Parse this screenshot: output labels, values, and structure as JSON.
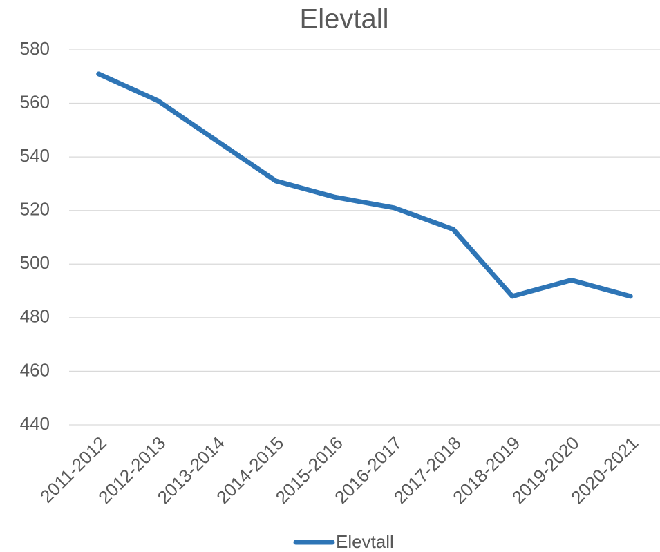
{
  "chart_data": {
    "type": "line",
    "title": "Elevtall",
    "categories": [
      "2011-2012",
      "2012-2013",
      "2013-2014",
      "2014-2015",
      "2015-2016",
      "2016-2017",
      "2017-2018",
      "2018-2019",
      "2019-2020",
      "2020-2021"
    ],
    "series": [
      {
        "name": "Elevtall",
        "color": "#2e75b6",
        "values": [
          571,
          561,
          546,
          531,
          525,
          521,
          513,
          488,
          494,
          488
        ]
      }
    ],
    "ylim": [
      440,
      580
    ],
    "yticks": [
      440,
      460,
      480,
      500,
      520,
      540,
      560,
      580
    ],
    "grid": true,
    "legend": "bottom"
  }
}
